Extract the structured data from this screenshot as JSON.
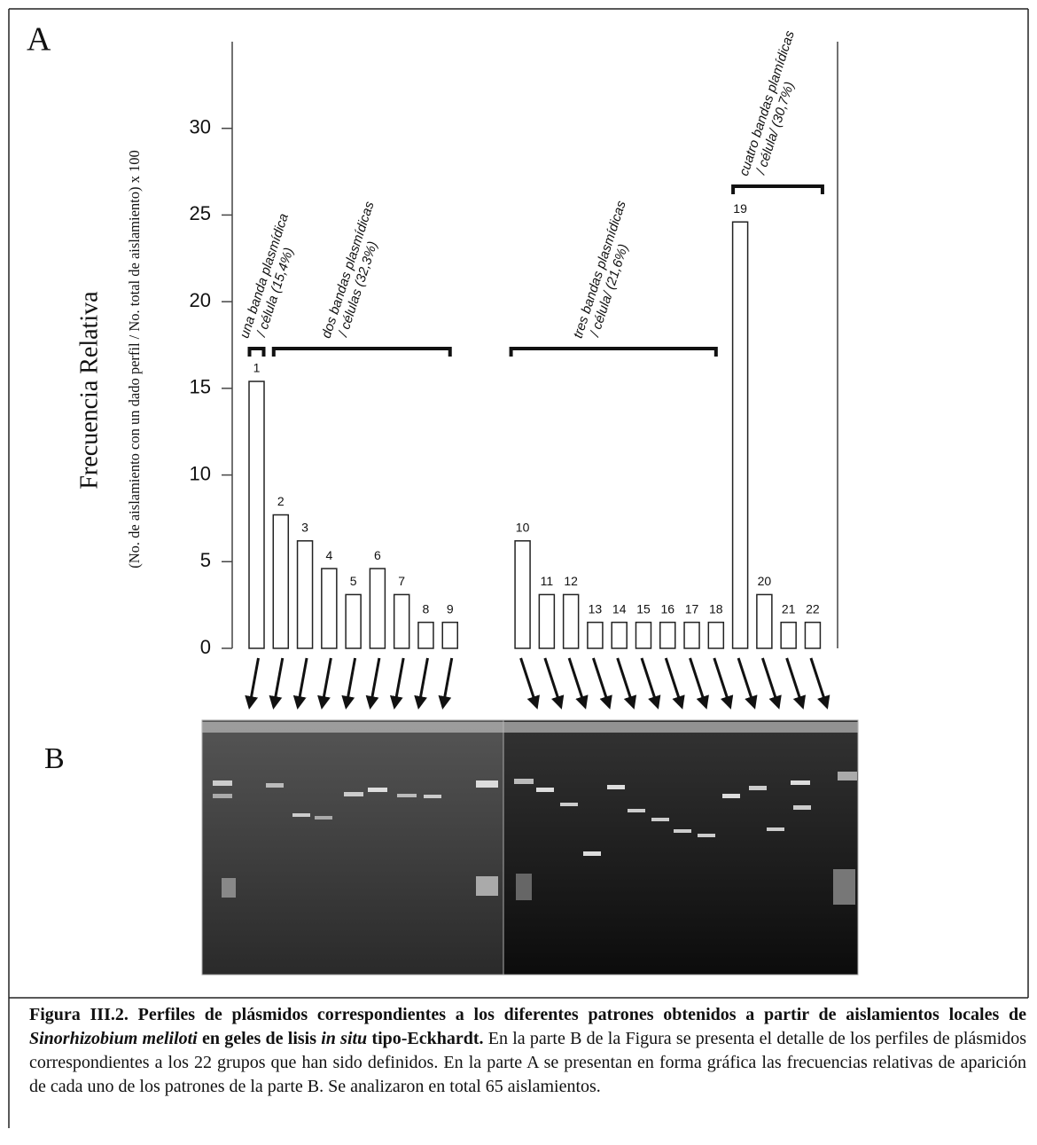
{
  "chart_data": {
    "type": "bar",
    "ylabel": "Frecuencia Relativa",
    "ylabel2": "(No. de aislamiento con un dado perfil / No. total de aislamiento) x 100",
    "categories": [
      "1",
      "2",
      "3",
      "4",
      "5",
      "6",
      "7",
      "8",
      "9",
      null,
      null,
      "10",
      "11",
      "12",
      "13",
      "14",
      "15",
      "16",
      "17",
      "18",
      "19",
      "20",
      "21",
      "22"
    ],
    "values": [
      15.4,
      7.7,
      6.2,
      4.6,
      3.1,
      4.6,
      3.1,
      1.5,
      1.5,
      null,
      null,
      6.2,
      3.1,
      3.1,
      1.5,
      1.5,
      1.5,
      1.5,
      1.5,
      1.5,
      24.6,
      3.1,
      1.5,
      1.5
    ],
    "color": "#ffffff",
    "edge_color": "#222222",
    "ylim": [
      0,
      35
    ],
    "yticks": [
      0,
      5,
      10,
      15,
      20,
      25,
      30
    ],
    "annotations": [
      {
        "lines": [
          "una banda plasmídica",
          "/ célula (15,4%)"
        ],
        "from": 0,
        "to": 0
      },
      {
        "lines": [
          "dos bandas plasmídicas",
          "/ células (32,3%)"
        ],
        "from": 1,
        "to": 8
      },
      {
        "lines": [
          "tres bandas plasmídicas",
          "/ célula/ (21,6%)"
        ],
        "from": 11,
        "to": 19
      },
      {
        "lines": [
          "cuatro bandas plamídicas",
          "/ célula/ (30,7%)"
        ],
        "from": 20,
        "to": 23
      }
    ]
  },
  "figure": {
    "panel_a": "A",
    "panel_b": "B",
    "caption": [
      {
        "text": "Figura III.2. Perfiles de plásmidos correspondientes a los diferentes patrones obtenidos a partir de aislamientos locales de ",
        "style": "bold"
      },
      {
        "text": "Sinorhizobium meliloti",
        "style": "bolditalic"
      },
      {
        "text": " en geles de lisis ",
        "style": "bold"
      },
      {
        "text": "in situ",
        "style": "bolditalic"
      },
      {
        "text": " tipo-Eckhardt.",
        "style": "bold"
      },
      {
        "text": " En la parte B de la Figura se presenta el detalle de los perfiles de plásmidos correspondientes a los 22 grupos que han sido definidos. En la parte A se presentan en forma gráfica las frecuencias relativas de aparición de cada uno de los patrones de la parte B. Se analizaron en total 65 aislamientos.",
        "style": "normal"
      }
    ]
  }
}
